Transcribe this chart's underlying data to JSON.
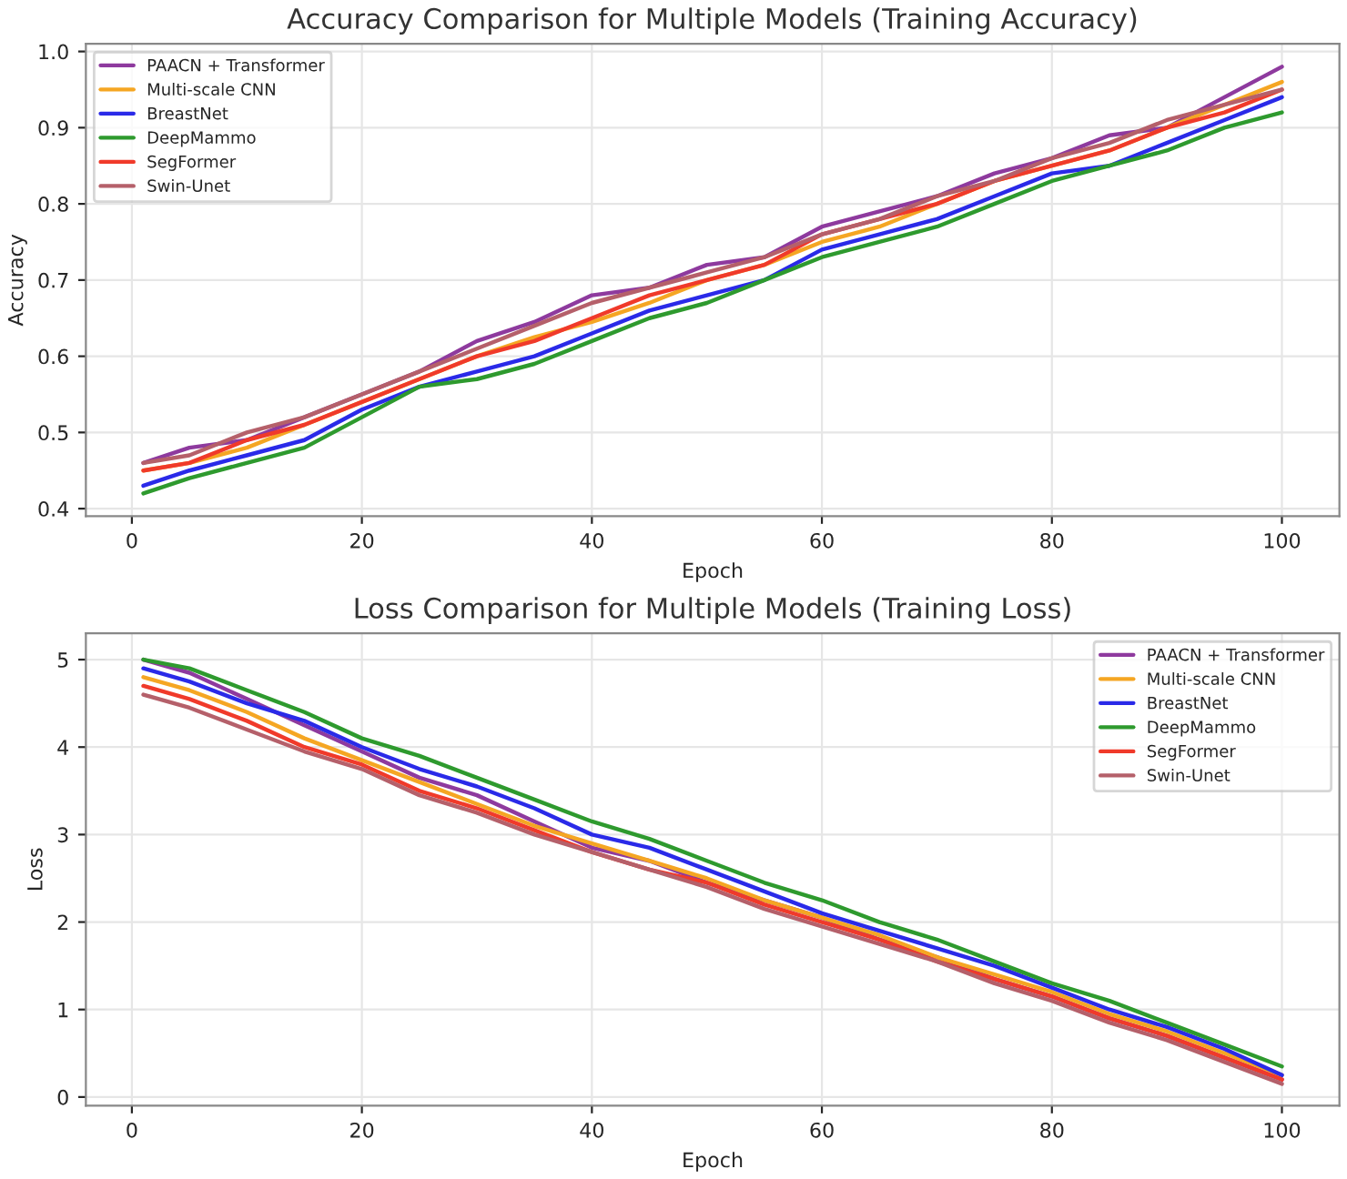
{
  "chart_data": [
    {
      "type": "line",
      "title": "Accuracy Comparison for Multiple Models (Training Accuracy)",
      "xlabel": "Epoch",
      "ylabel": "Accuracy",
      "x": [
        1,
        5,
        10,
        15,
        20,
        25,
        30,
        35,
        40,
        45,
        50,
        55,
        60,
        65,
        70,
        75,
        80,
        85,
        90,
        95,
        100
      ],
      "series": [
        {
          "name": "PAACN + Transformer",
          "color": "#8e3a9e",
          "values": [
            0.46,
            0.48,
            0.49,
            0.52,
            0.55,
            0.58,
            0.62,
            0.645,
            0.68,
            0.69,
            0.72,
            0.73,
            0.77,
            0.79,
            0.81,
            0.84,
            0.86,
            0.89,
            0.9,
            0.94,
            0.98
          ]
        },
        {
          "name": "Multi-scale CNN",
          "color": "#f5a623",
          "values": [
            0.45,
            0.46,
            0.48,
            0.51,
            0.54,
            0.57,
            0.6,
            0.625,
            0.645,
            0.67,
            0.7,
            0.72,
            0.75,
            0.77,
            0.8,
            0.83,
            0.85,
            0.87,
            0.9,
            0.93,
            0.96
          ]
        },
        {
          "name": "BreastNet",
          "color": "#2a2ae8",
          "values": [
            0.43,
            0.45,
            0.47,
            0.49,
            0.53,
            0.56,
            0.58,
            0.6,
            0.63,
            0.66,
            0.68,
            0.7,
            0.74,
            0.76,
            0.78,
            0.81,
            0.84,
            0.85,
            0.88,
            0.91,
            0.94
          ]
        },
        {
          "name": "DeepMammo",
          "color": "#2e9a2e",
          "values": [
            0.42,
            0.44,
            0.46,
            0.48,
            0.52,
            0.56,
            0.57,
            0.59,
            0.62,
            0.65,
            0.67,
            0.7,
            0.73,
            0.75,
            0.77,
            0.8,
            0.83,
            0.85,
            0.87,
            0.9,
            0.92
          ]
        },
        {
          "name": "SegFormer",
          "color": "#f03a2a",
          "values": [
            0.45,
            0.46,
            0.49,
            0.51,
            0.54,
            0.57,
            0.6,
            0.62,
            0.65,
            0.68,
            0.7,
            0.72,
            0.76,
            0.78,
            0.8,
            0.83,
            0.85,
            0.87,
            0.9,
            0.92,
            0.95
          ]
        },
        {
          "name": "Swin-Unet",
          "color": "#b5606a",
          "values": [
            0.46,
            0.47,
            0.5,
            0.52,
            0.55,
            0.58,
            0.61,
            0.64,
            0.67,
            0.69,
            0.71,
            0.73,
            0.76,
            0.78,
            0.81,
            0.83,
            0.86,
            0.88,
            0.91,
            0.93,
            0.95
          ]
        }
      ],
      "xlim": [
        -4,
        105
      ],
      "xticks": [
        0,
        20,
        40,
        60,
        80,
        100
      ],
      "ylim": [
        0.39,
        1.01
      ],
      "yticks": [
        0.4,
        0.5,
        0.6,
        0.7,
        0.8,
        0.9,
        {
          "value": 1.0,
          "label": "1.0"
        }
      ],
      "grid": true,
      "legend": "top left",
      "line_style": "solid",
      "marker": "none"
    },
    {
      "type": "line",
      "title": "Loss Comparison for Multiple Models (Training Loss)",
      "xlabel": "Epoch",
      "ylabel": "Loss",
      "x": [
        1,
        5,
        10,
        15,
        20,
        25,
        30,
        35,
        40,
        45,
        50,
        55,
        60,
        65,
        70,
        75,
        80,
        85,
        90,
        95,
        100
      ],
      "series": [
        {
          "name": "PAACN + Transformer",
          "color": "#8e3a9e",
          "values": [
            5.0,
            4.85,
            4.55,
            4.25,
            3.95,
            3.65,
            3.45,
            3.15,
            2.85,
            2.7,
            2.45,
            2.25,
            2.05,
            1.8,
            1.6,
            1.35,
            1.15,
            0.9,
            0.7,
            0.45,
            0.2
          ]
        },
        {
          "name": "Multi-scale CNN",
          "color": "#f5a623",
          "values": [
            4.8,
            4.65,
            4.4,
            4.1,
            3.85,
            3.6,
            3.35,
            3.1,
            2.9,
            2.7,
            2.5,
            2.25,
            2.05,
            1.85,
            1.6,
            1.4,
            1.2,
            0.95,
            0.75,
            0.5,
            0.25
          ]
        },
        {
          "name": "BreastNet",
          "color": "#2a2ae8",
          "values": [
            4.9,
            4.75,
            4.5,
            4.3,
            4.0,
            3.75,
            3.55,
            3.3,
            3.0,
            2.85,
            2.6,
            2.35,
            2.1,
            1.9,
            1.7,
            1.5,
            1.25,
            1.0,
            0.8,
            0.55,
            0.25
          ]
        },
        {
          "name": "DeepMammo",
          "color": "#2e9a2e",
          "values": [
            5.0,
            4.9,
            4.65,
            4.4,
            4.1,
            3.9,
            3.65,
            3.4,
            3.15,
            2.95,
            2.7,
            2.45,
            2.25,
            2.0,
            1.8,
            1.55,
            1.3,
            1.1,
            0.85,
            0.6,
            0.35
          ]
        },
        {
          "name": "SegFormer",
          "color": "#f03a2a",
          "values": [
            4.7,
            4.55,
            4.3,
            4.0,
            3.8,
            3.5,
            3.3,
            3.05,
            2.8,
            2.6,
            2.45,
            2.2,
            2.0,
            1.8,
            1.55,
            1.35,
            1.15,
            0.9,
            0.7,
            0.45,
            0.2
          ]
        },
        {
          "name": "Swin-Unet",
          "color": "#b5606a",
          "values": [
            4.6,
            4.45,
            4.2,
            3.95,
            3.75,
            3.45,
            3.25,
            3.0,
            2.8,
            2.6,
            2.4,
            2.15,
            1.95,
            1.75,
            1.55,
            1.3,
            1.1,
            0.85,
            0.65,
            0.4,
            0.15
          ]
        }
      ],
      "xlim": [
        -4,
        105
      ],
      "xticks": [
        0,
        20,
        40,
        60,
        80,
        100
      ],
      "ylim": [
        -0.1,
        5.3
      ],
      "yticks": [
        0,
        1,
        2,
        3,
        4,
        5
      ],
      "grid": true,
      "legend": "top right",
      "line_style": "solid",
      "marker": "none"
    }
  ]
}
